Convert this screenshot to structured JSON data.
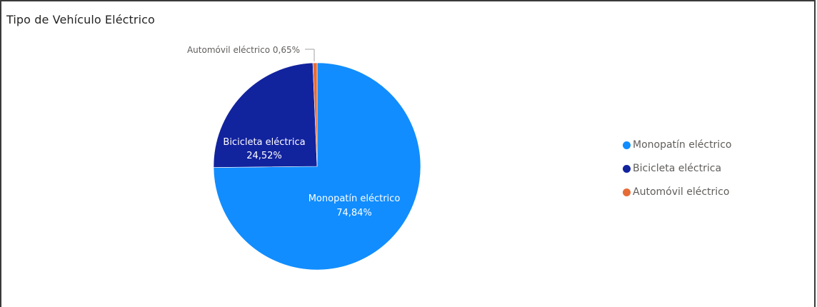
{
  "header": {
    "title": "Tipo de Vehículo Eléctrico"
  },
  "chart_data": {
    "type": "pie",
    "title": "Tipo de Vehículo Eléctrico",
    "legend_position": "right",
    "categories": [
      "Monopatín eléctrico",
      "Bicicleta eléctrica",
      "Automóvil eléctrico"
    ],
    "values": [
      74.84,
      24.52,
      0.65
    ],
    "value_labels": [
      "74,84%",
      "24,52%",
      "0,65%"
    ],
    "colors": [
      "#118dff",
      "#12239e",
      "#e66c37"
    ],
    "outside_label_text": "Automóvil eléctrico 0,65%"
  }
}
